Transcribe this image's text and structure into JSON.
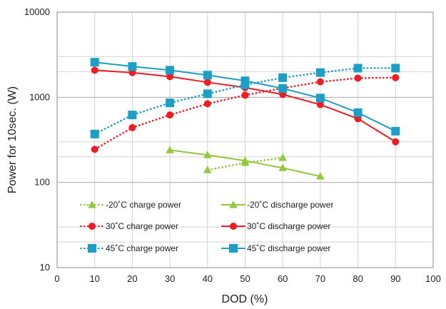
{
  "chart_data": {
    "type": "line",
    "xlabel": "DOD (%)",
    "ylabel": "Power for 10sec. (W)",
    "xlim": [
      0,
      100
    ],
    "ylim": [
      10,
      10000
    ],
    "yscale": "log",
    "xticks": [
      "0",
      "10",
      "20",
      "30",
      "40",
      "50",
      "60",
      "70",
      "80",
      "90",
      "100"
    ],
    "yticks": [
      "10",
      "100",
      "1000",
      "10000"
    ],
    "grid": true,
    "legend_placement": "bottom-inside",
    "series": [
      {
        "name": "-20˚C charge power",
        "color": "#92c83e",
        "style": "dotted",
        "marker": "triangle",
        "x": [
          40,
          50,
          60
        ],
        "y": [
          140,
          170,
          195
        ]
      },
      {
        "name": "-20˚C discharge power",
        "color": "#92c83e",
        "style": "solid",
        "marker": "triangle",
        "x": [
          30,
          40,
          50,
          60,
          70
        ],
        "y": [
          240,
          210,
          180,
          148,
          118
        ]
      },
      {
        "name": "30˚C charge power",
        "color": "#ee1c25",
        "style": "dotted",
        "marker": "circle",
        "x": [
          10,
          20,
          30,
          40,
          50,
          60,
          70,
          80,
          90
        ],
        "y": [
          245,
          440,
          620,
          840,
          1060,
          1280,
          1520,
          1680,
          1700
        ]
      },
      {
        "name": "30˚C discharge power",
        "color": "#ee1c25",
        "style": "solid",
        "marker": "circle",
        "x": [
          10,
          20,
          30,
          40,
          50,
          60,
          70,
          80,
          90
        ],
        "y": [
          2080,
          1950,
          1750,
          1500,
          1300,
          1080,
          820,
          560,
          300
        ]
      },
      {
        "name": "45˚C charge power",
        "color": "#1d9ec4",
        "style": "dotted",
        "marker": "square",
        "x": [
          10,
          20,
          30,
          40,
          50,
          60,
          70,
          80,
          90
        ],
        "y": [
          370,
          620,
          860,
          1100,
          1400,
          1700,
          1950,
          2200,
          2200
        ]
      },
      {
        "name": "45˚C discharge power",
        "color": "#1d9ec4",
        "style": "solid",
        "marker": "square",
        "x": [
          10,
          20,
          30,
          40,
          50,
          60,
          70,
          80,
          90
        ],
        "y": [
          2580,
          2300,
          2080,
          1820,
          1560,
          1270,
          980,
          660,
          400
        ]
      }
    ]
  }
}
